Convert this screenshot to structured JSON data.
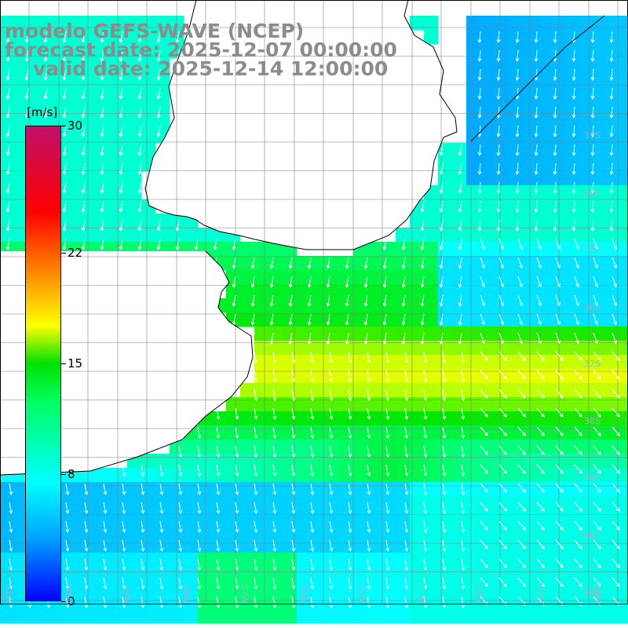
{
  "title": {
    "line1": "modelo GEFS-WAVE (NCEP)",
    "line2": "forecast date: 2025-12-07 00:00:00",
    "line3": "valid date: 2025-12-14 12:00:00"
  },
  "colorbar": {
    "unit": "[m/s]",
    "ticks": [
      "30",
      "22",
      "15",
      "8",
      "0"
    ],
    "values": [
      30,
      22,
      15,
      8,
      0
    ],
    "range": [
      0,
      30
    ],
    "colors": [
      "#0000ff",
      "#00a0ff",
      "#00ffff",
      "#00ff60",
      "#00e000",
      "#ffff00",
      "#ff8000",
      "#ff0000",
      "#c0106a"
    ]
  },
  "map": {
    "variable": "wind speed",
    "land_color": "#ffffff",
    "grid_color": "#808080",
    "lat_labels": [
      "33S",
      "34S",
      "35S",
      "36S",
      "37S",
      "38S",
      "39S",
      "40S",
      "41S"
    ],
    "lon_labels": [
      "61W",
      "60W",
      "59W",
      "58W",
      "57W",
      "56W",
      "55W",
      "54W",
      "53W",
      "52W",
      "51W"
    ],
    "features": [
      "Río de la Plata estuary",
      "Uruguay coastline",
      "Buenos Aires province coastline"
    ]
  }
}
